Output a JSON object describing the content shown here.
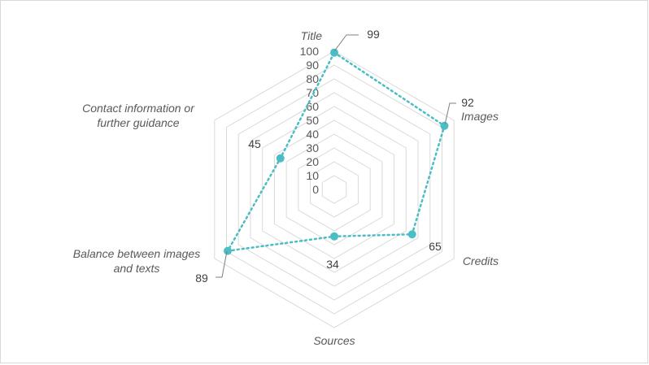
{
  "chart_data": {
    "type": "radar",
    "title": "",
    "categories": [
      "Title",
      "Images",
      "Credits",
      "Sources",
      "Balance between images and texts",
      "Contact information or further guidance"
    ],
    "series": [
      {
        "values": [
          99,
          92,
          65,
          34,
          89,
          45
        ]
      }
    ],
    "data_labels": [
      "99",
      "92",
      "65",
      "34",
      "89",
      "45"
    ],
    "r_ticks": [
      "0",
      "10",
      "20",
      "30",
      "40",
      "50",
      "60",
      "70",
      "80",
      "90",
      "100"
    ],
    "rlim": [
      0,
      100
    ],
    "grid": true,
    "legend": "none",
    "colors": {
      "series": "#4bbdc4",
      "grid": "#d9d9d9",
      "text": "#595959",
      "border": "#d9d9d9"
    }
  }
}
